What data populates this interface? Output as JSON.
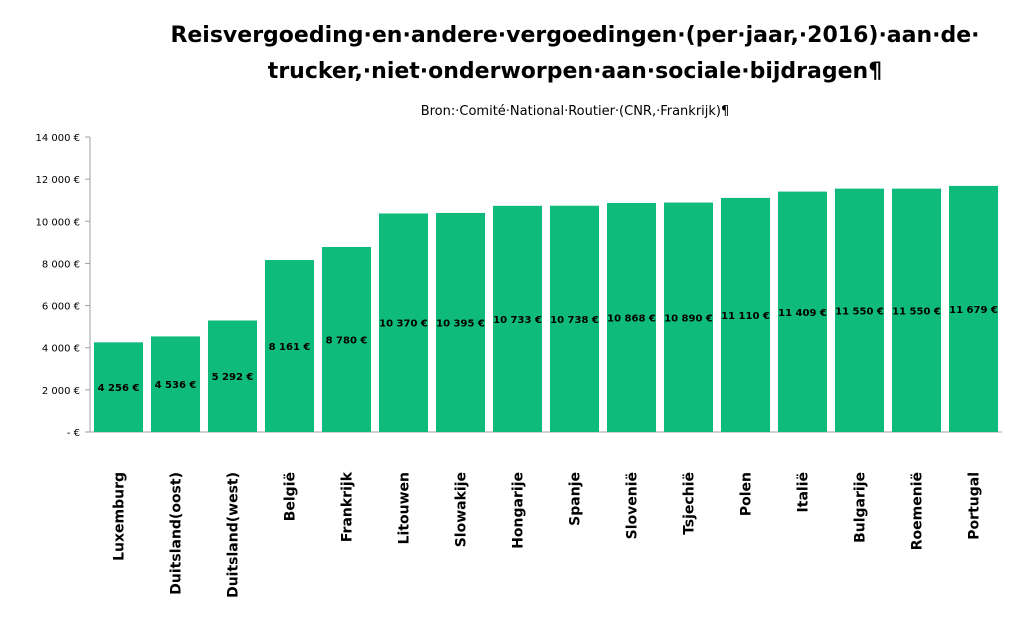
{
  "chart_data": {
    "type": "bar",
    "title_lines": [
      "Reisvergoeding·en·andere·vergoedingen·(per·jaar,·2016)·aan·de·",
      "trucker,·niet·onderworpen·aan·sociale·bijdragen¶"
    ],
    "subtitle": "Bron:·Comité·National·Routier·(CNR,·Frankrijk)¶",
    "xlabel": "",
    "ylabel": "",
    "ylim": [
      0,
      14000
    ],
    "yticks": [
      0,
      2000,
      4000,
      6000,
      8000,
      10000,
      12000,
      14000
    ],
    "ytick_labels": [
      "- €",
      "2 000 €",
      "4 000 €",
      "6 000 €",
      "8 000 €",
      "10 000 €",
      "12 000 €",
      "14 000 €"
    ],
    "grid": false,
    "bar_color": "#0fbb7b",
    "categories": [
      "Luxemburg",
      "Duitsland(oost)",
      "Duitsland(west)",
      "België",
      "Frankrijk",
      "Litouwen",
      "Slowakije",
      "Hongarije",
      "Spanje",
      "Slovenië",
      "Tsjechië",
      "Polen",
      "Italië",
      "Bulgarije",
      "Roemenië",
      "Portugal"
    ],
    "values": [
      4256,
      4536,
      5292,
      8161,
      8780,
      10370,
      10395,
      10733,
      10738,
      10868,
      10890,
      11110,
      11409,
      11550,
      11550,
      11679
    ],
    "value_labels": [
      "4 256 €",
      "4 536 €",
      "5 292 €",
      "8 161 €",
      "8 780 €",
      "10 370 €",
      "10 395 €",
      "10 733 €",
      "10 738 €",
      "10 868 €",
      "10 890 €",
      "11 110 €",
      "11 409 €",
      "11 550 €",
      "11 550 €",
      "11 679 €"
    ]
  }
}
